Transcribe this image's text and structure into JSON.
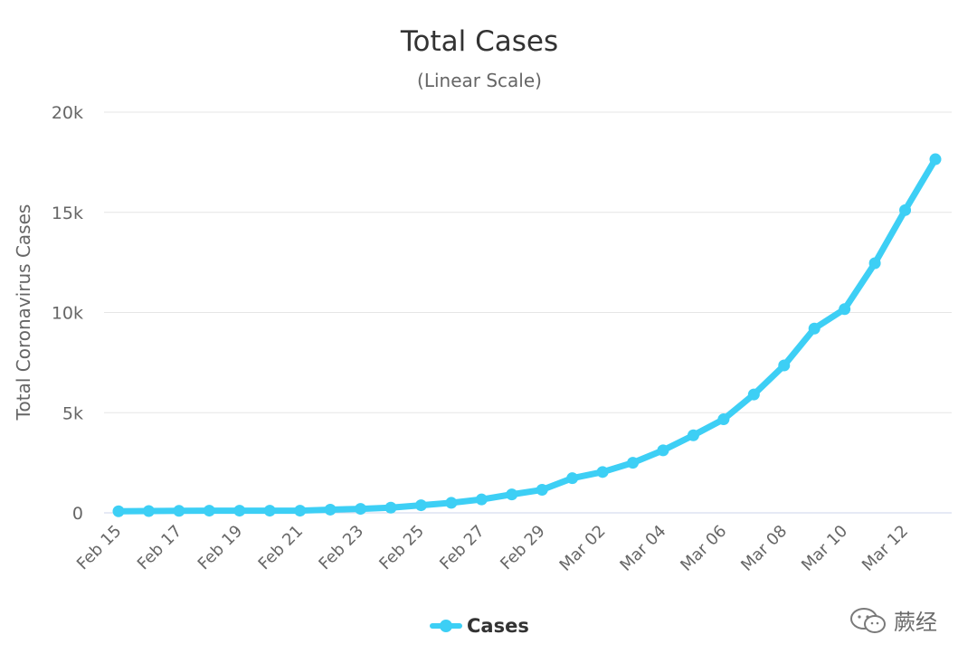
{
  "chart_data": {
    "type": "line",
    "title": "Total Cases",
    "subtitle": "(Linear Scale)",
    "xlabel": "",
    "ylabel": "Total Coronavirus Cases",
    "ylim": [
      0,
      20000
    ],
    "yticks": [
      0,
      5000,
      10000,
      15000,
      20000
    ],
    "ytick_labels": [
      "0",
      "5k",
      "10k",
      "15k",
      "20k"
    ],
    "x": [
      "Feb 15",
      "Feb 16",
      "Feb 17",
      "Feb 18",
      "Feb 19",
      "Feb 20",
      "Feb 21",
      "Feb 22",
      "Feb 23",
      "Feb 24",
      "Feb 25",
      "Feb 26",
      "Feb 27",
      "Feb 28",
      "Feb 29",
      "Mar 01",
      "Mar 02",
      "Mar 03",
      "Mar 04",
      "Mar 05",
      "Mar 06",
      "Mar 07",
      "Mar 08",
      "Mar 09",
      "Mar 10",
      "Mar 11",
      "Mar 12",
      "Mar 13"
    ],
    "xtick_labels_shown": [
      "Feb 15",
      "Feb 17",
      "Feb 19",
      "Feb 21",
      "Feb 23",
      "Feb 25",
      "Feb 27",
      "Feb 29",
      "Mar 02",
      "Mar 04",
      "Mar 06",
      "Mar 08",
      "Mar 10",
      "Mar 12"
    ],
    "series": [
      {
        "name": "Cases",
        "color": "#3dcff5",
        "values": [
          80,
          90,
          100,
          110,
          110,
          110,
          110,
          160,
          200,
          260,
          380,
          500,
          670,
          920,
          1150,
          1730,
          2040,
          2500,
          3120,
          3870,
          4670,
          5910,
          7360,
          9200,
          10170,
          12460,
          15110,
          17650
        ]
      }
    ],
    "legend": {
      "position": "bottom-center",
      "label": "Cases"
    },
    "grid": true,
    "colors": {
      "grid": "#e6e6e6",
      "axis_text": "#666666",
      "title": "#333333"
    }
  },
  "watermark": {
    "text": "蕨经"
  }
}
